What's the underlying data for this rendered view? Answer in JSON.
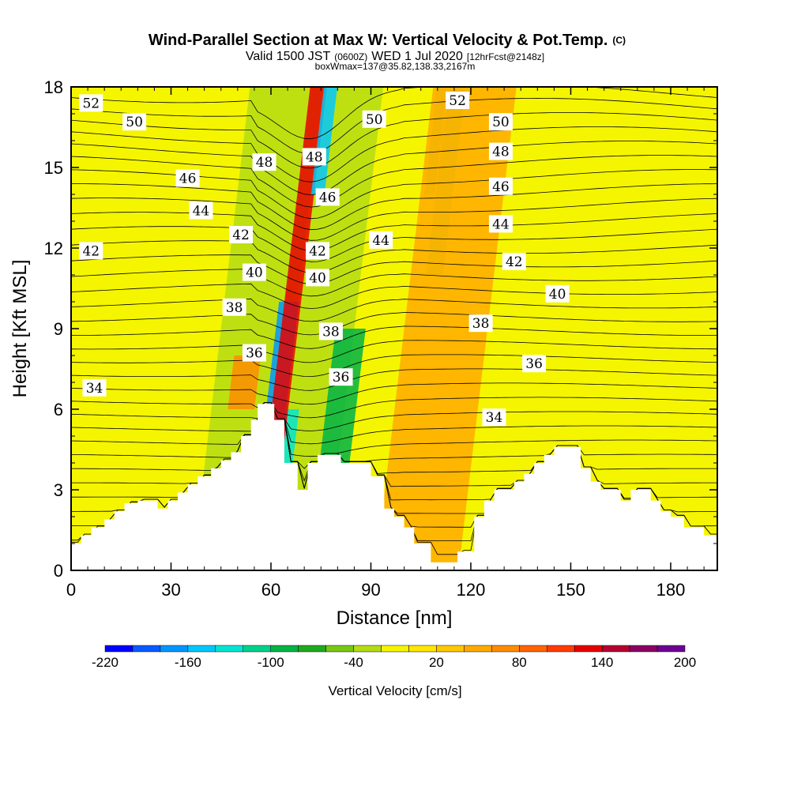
{
  "chart_data": {
    "type": "heatmap",
    "title": "Wind-Parallel Section at Max W: Vertical Velocity & Pot.Temp.",
    "title_suffix": "(C)",
    "subtitle_parts": {
      "valid": "Valid 1500 JST",
      "utc": "(0600Z)",
      "date": "WED 1 Jul 2020",
      "forecast": "[12hrFcst@2148z]"
    },
    "subtitle2": "boxWmax=137@35.82,138.33,2167m",
    "xlabel": "Distance [nm]",
    "ylabel": "Height [Kft MSL]",
    "xlim": [
      0,
      194
    ],
    "ylim": [
      0,
      18
    ],
    "x_ticks": [
      0,
      30,
      60,
      90,
      120,
      150,
      180
    ],
    "y_ticks": [
      0,
      3,
      6,
      9,
      12,
      15,
      18
    ],
    "colorbar": {
      "label": "Vertical Velocity [cm/s]",
      "min": -220,
      "max": 200,
      "tick_labels": [
        "-220",
        "-160",
        "-100",
        "-40",
        "20",
        "80",
        "140",
        "200"
      ],
      "colors": [
        "#0000ff",
        "#0a5aff",
        "#0096ff",
        "#00c8ff",
        "#00e6d2",
        "#00d28c",
        "#00b446",
        "#1eaa1e",
        "#78c814",
        "#b4dc14",
        "#f5f500",
        "#ffe600",
        "#ffc800",
        "#ffaa00",
        "#ff8c00",
        "#ff6400",
        "#ff3c00",
        "#e60000",
        "#b40032",
        "#8c0064",
        "#6e0096"
      ]
    },
    "terrain": [
      [
        0,
        1.0
      ],
      [
        3,
        1.0
      ],
      [
        3,
        1.3
      ],
      [
        6,
        1.3
      ],
      [
        6,
        1.6
      ],
      [
        10,
        1.6
      ],
      [
        10,
        1.9
      ],
      [
        13,
        1.9
      ],
      [
        13,
        2.2
      ],
      [
        16,
        2.2
      ],
      [
        16,
        2.5
      ],
      [
        20,
        2.5
      ],
      [
        20,
        2.6
      ],
      [
        26,
        2.6
      ],
      [
        26,
        2.3
      ],
      [
        29,
        2.3
      ],
      [
        29,
        2.6
      ],
      [
        32,
        2.6
      ],
      [
        32,
        2.9
      ],
      [
        35,
        2.9
      ],
      [
        35,
        3.2
      ],
      [
        38,
        3.2
      ],
      [
        38,
        3.5
      ],
      [
        42,
        3.5
      ],
      [
        42,
        3.8
      ],
      [
        45,
        3.8
      ],
      [
        45,
        4.1
      ],
      [
        48,
        4.1
      ],
      [
        48,
        4.4
      ],
      [
        51,
        4.4
      ],
      [
        51,
        5.0
      ],
      [
        54,
        5.0
      ],
      [
        54,
        5.6
      ],
      [
        56,
        5.6
      ],
      [
        56,
        6.2
      ],
      [
        61,
        6.2
      ],
      [
        61,
        5.6
      ],
      [
        64,
        5.6
      ],
      [
        64,
        4.0
      ],
      [
        68,
        4.0
      ],
      [
        68,
        3.0
      ],
      [
        71,
        3.0
      ],
      [
        71,
        4.0
      ],
      [
        74,
        4.0
      ],
      [
        74,
        4.3
      ],
      [
        81,
        4.3
      ],
      [
        81,
        4.0
      ],
      [
        90,
        4.0
      ],
      [
        90,
        3.5
      ],
      [
        94,
        3.5
      ],
      [
        94,
        2.3
      ],
      [
        97,
        2.3
      ],
      [
        97,
        2.0
      ],
      [
        100,
        2.0
      ],
      [
        100,
        1.6
      ],
      [
        103,
        1.6
      ],
      [
        103,
        1.0
      ],
      [
        108,
        1.0
      ],
      [
        108,
        0.3
      ],
      [
        116,
        0.3
      ],
      [
        116,
        0.7
      ],
      [
        121,
        0.7
      ],
      [
        121,
        2.0
      ],
      [
        124,
        2.0
      ],
      [
        124,
        2.6
      ],
      [
        127,
        2.6
      ],
      [
        127,
        3.0
      ],
      [
        133,
        3.0
      ],
      [
        133,
        3.3
      ],
      [
        136,
        3.3
      ],
      [
        136,
        3.6
      ],
      [
        139,
        3.6
      ],
      [
        139,
        4.0
      ],
      [
        142,
        4.0
      ],
      [
        142,
        4.3
      ],
      [
        145,
        4.3
      ],
      [
        145,
        4.6
      ],
      [
        153,
        4.6
      ],
      [
        153,
        3.8
      ],
      [
        156,
        3.8
      ],
      [
        156,
        3.3
      ],
      [
        159,
        3.3
      ],
      [
        159,
        3.0
      ],
      [
        165,
        3.0
      ],
      [
        165,
        2.6
      ],
      [
        168,
        2.6
      ],
      [
        168,
        3.0
      ],
      [
        174,
        3.0
      ],
      [
        174,
        2.6
      ],
      [
        177,
        2.6
      ],
      [
        177,
        2.2
      ],
      [
        180,
        2.2
      ],
      [
        180,
        2.0
      ],
      [
        184,
        2.0
      ],
      [
        184,
        1.6
      ],
      [
        190,
        1.6
      ],
      [
        190,
        1.3
      ],
      [
        194,
        1.3
      ]
    ],
    "w_bands": [
      {
        "x": [
          45,
          67
        ],
        "y": [
          0,
          18
        ],
        "value": -40
      },
      {
        "x": [
          68,
          85
        ],
        "y": [
          0,
          18
        ],
        "value": -40
      },
      {
        "x": [
          110,
          115
        ],
        "y": [
          11,
          18
        ],
        "value": -40
      },
      {
        "x": [
          60,
          66
        ],
        "y": [
          5,
          10
        ],
        "value": -180
      },
      {
        "x": [
          63,
          67
        ],
        "y": [
          3,
          6
        ],
        "value": -140
      },
      {
        "x": [
          65,
          70
        ],
        "y": [
          4,
          18
        ],
        "value": 120
      },
      {
        "x": [
          77,
          86
        ],
        "y": [
          4,
          9
        ],
        "value": -100
      },
      {
        "x": [
          74,
          78
        ],
        "y": [
          14,
          18
        ],
        "value": -160
      },
      {
        "x": [
          108,
          111
        ],
        "y": [
          14,
          18
        ],
        "value": -40
      },
      {
        "x": [
          100,
          125
        ],
        "y": [
          0,
          18
        ],
        "value": 40
      },
      {
        "x": [
          48,
          56
        ],
        "y": [
          6,
          8
        ],
        "value": 60
      }
    ],
    "theta_levels": [
      34,
      36,
      38,
      40,
      42,
      44,
      46,
      48,
      50,
      52
    ],
    "theta_labels": [
      {
        "text": "52",
        "x": 6,
        "y": 17.4
      },
      {
        "text": "50",
        "x": 19,
        "y": 16.7
      },
      {
        "text": "46",
        "x": 35,
        "y": 14.6
      },
      {
        "text": "44",
        "x": 39,
        "y": 13.4
      },
      {
        "text": "42",
        "x": 51,
        "y": 12.5
      },
      {
        "text": "42",
        "x": 6,
        "y": 11.9
      },
      {
        "text": "40",
        "x": 55,
        "y": 11.1
      },
      {
        "text": "38",
        "x": 49,
        "y": 9.8
      },
      {
        "text": "36",
        "x": 55,
        "y": 8.1
      },
      {
        "text": "34",
        "x": 7,
        "y": 6.8
      },
      {
        "text": "48",
        "x": 58,
        "y": 15.2
      },
      {
        "text": "48",
        "x": 73,
        "y": 15.4
      },
      {
        "text": "46",
        "x": 77,
        "y": 13.9
      },
      {
        "text": "42",
        "x": 74,
        "y": 11.9
      },
      {
        "text": "40",
        "x": 74,
        "y": 10.9
      },
      {
        "text": "38",
        "x": 78,
        "y": 8.9
      },
      {
        "text": "36",
        "x": 81,
        "y": 7.2
      },
      {
        "text": "50",
        "x": 91,
        "y": 16.8
      },
      {
        "text": "44",
        "x": 93,
        "y": 12.3
      },
      {
        "text": "52",
        "x": 116,
        "y": 17.5
      },
      {
        "text": "50",
        "x": 129,
        "y": 16.7
      },
      {
        "text": "48",
        "x": 129,
        "y": 15.6
      },
      {
        "text": "46",
        "x": 129,
        "y": 14.3
      },
      {
        "text": "44",
        "x": 129,
        "y": 12.9
      },
      {
        "text": "42",
        "x": 133,
        "y": 11.5
      },
      {
        "text": "40",
        "x": 146,
        "y": 10.3
      },
      {
        "text": "38",
        "x": 123,
        "y": 9.2
      },
      {
        "text": "36",
        "x": 139,
        "y": 7.7
      },
      {
        "text": "34",
        "x": 127,
        "y": 5.7
      }
    ]
  }
}
